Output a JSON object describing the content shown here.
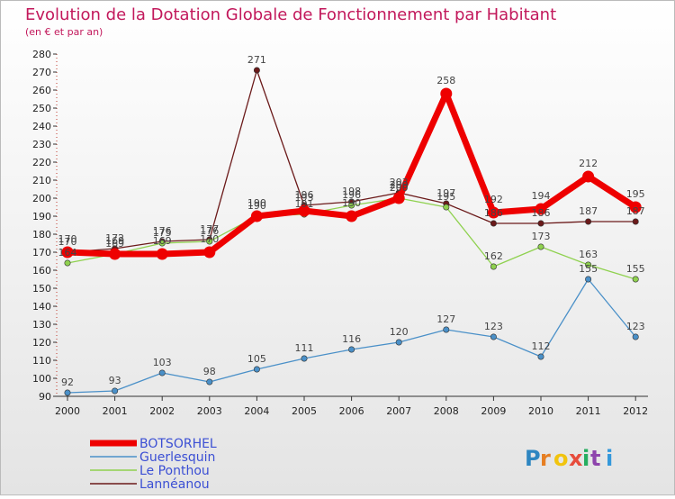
{
  "chart_data": {
    "type": "line",
    "title": "Evolution de la Dotation Globale de Fonctionnement par Habitant",
    "subtitle": "(en € et par an)",
    "xlabel": "",
    "ylabel": "",
    "ylim": [
      90,
      280
    ],
    "ytick_step": 10,
    "categories": [
      "2000",
      "2001",
      "2002",
      "2003",
      "2004",
      "2005",
      "2006",
      "2007",
      "2008",
      "2009",
      "2010",
      "2011",
      "2012"
    ],
    "series": [
      {
        "name": "Lannéanou",
        "color": "#6b1a1a",
        "values": [
          170,
          172,
          176,
          177,
          271,
          196,
          198,
          203,
          197,
          186,
          186,
          187,
          187
        ],
        "labels": [
          "170",
          "172",
          "176",
          "177",
          "271",
          "196",
          "198",
          "203",
          "197",
          "186",
          "186",
          "187",
          "187"
        ]
      },
      {
        "name": "Le Ponthou",
        "color": "#8fd14f",
        "values": [
          164,
          169,
          175,
          176,
          190,
          191,
          196,
          200,
          195,
          162,
          173,
          163,
          155
        ],
        "labels": [
          "164",
          "169",
          "175",
          "176",
          "190",
          "191",
          "196",
          "200",
          "195",
          "162",
          "173",
          "163",
          "155"
        ]
      },
      {
        "name": "Guerlesquin",
        "color": "#4a90c8",
        "values": [
          92,
          93,
          103,
          98,
          105,
          111,
          116,
          120,
          127,
          123,
          112,
          155,
          123
        ],
        "labels": [
          "92",
          "93",
          "103",
          "98",
          "105",
          "111",
          "116",
          "120",
          "127",
          "123",
          "112",
          "155",
          "123"
        ]
      },
      {
        "name": "BOTSORHEL",
        "color": "#ee0000",
        "values": [
          170,
          169,
          169,
          170,
          190,
          193,
          190,
          200,
          258,
          192,
          194,
          212,
          195
        ],
        "labels": [
          "170",
          "169",
          "169",
          "170",
          "190",
          "193",
          "190",
          "200",
          "258",
          "192",
          "194",
          "212",
          "195"
        ]
      }
    ],
    "legend": [
      "BOTSORHEL",
      "Guerlesquin",
      "Le Ponthou",
      "Lannéanou"
    ],
    "legend_position": "bottom-left",
    "brand": "Proxiti",
    "grid": false
  }
}
